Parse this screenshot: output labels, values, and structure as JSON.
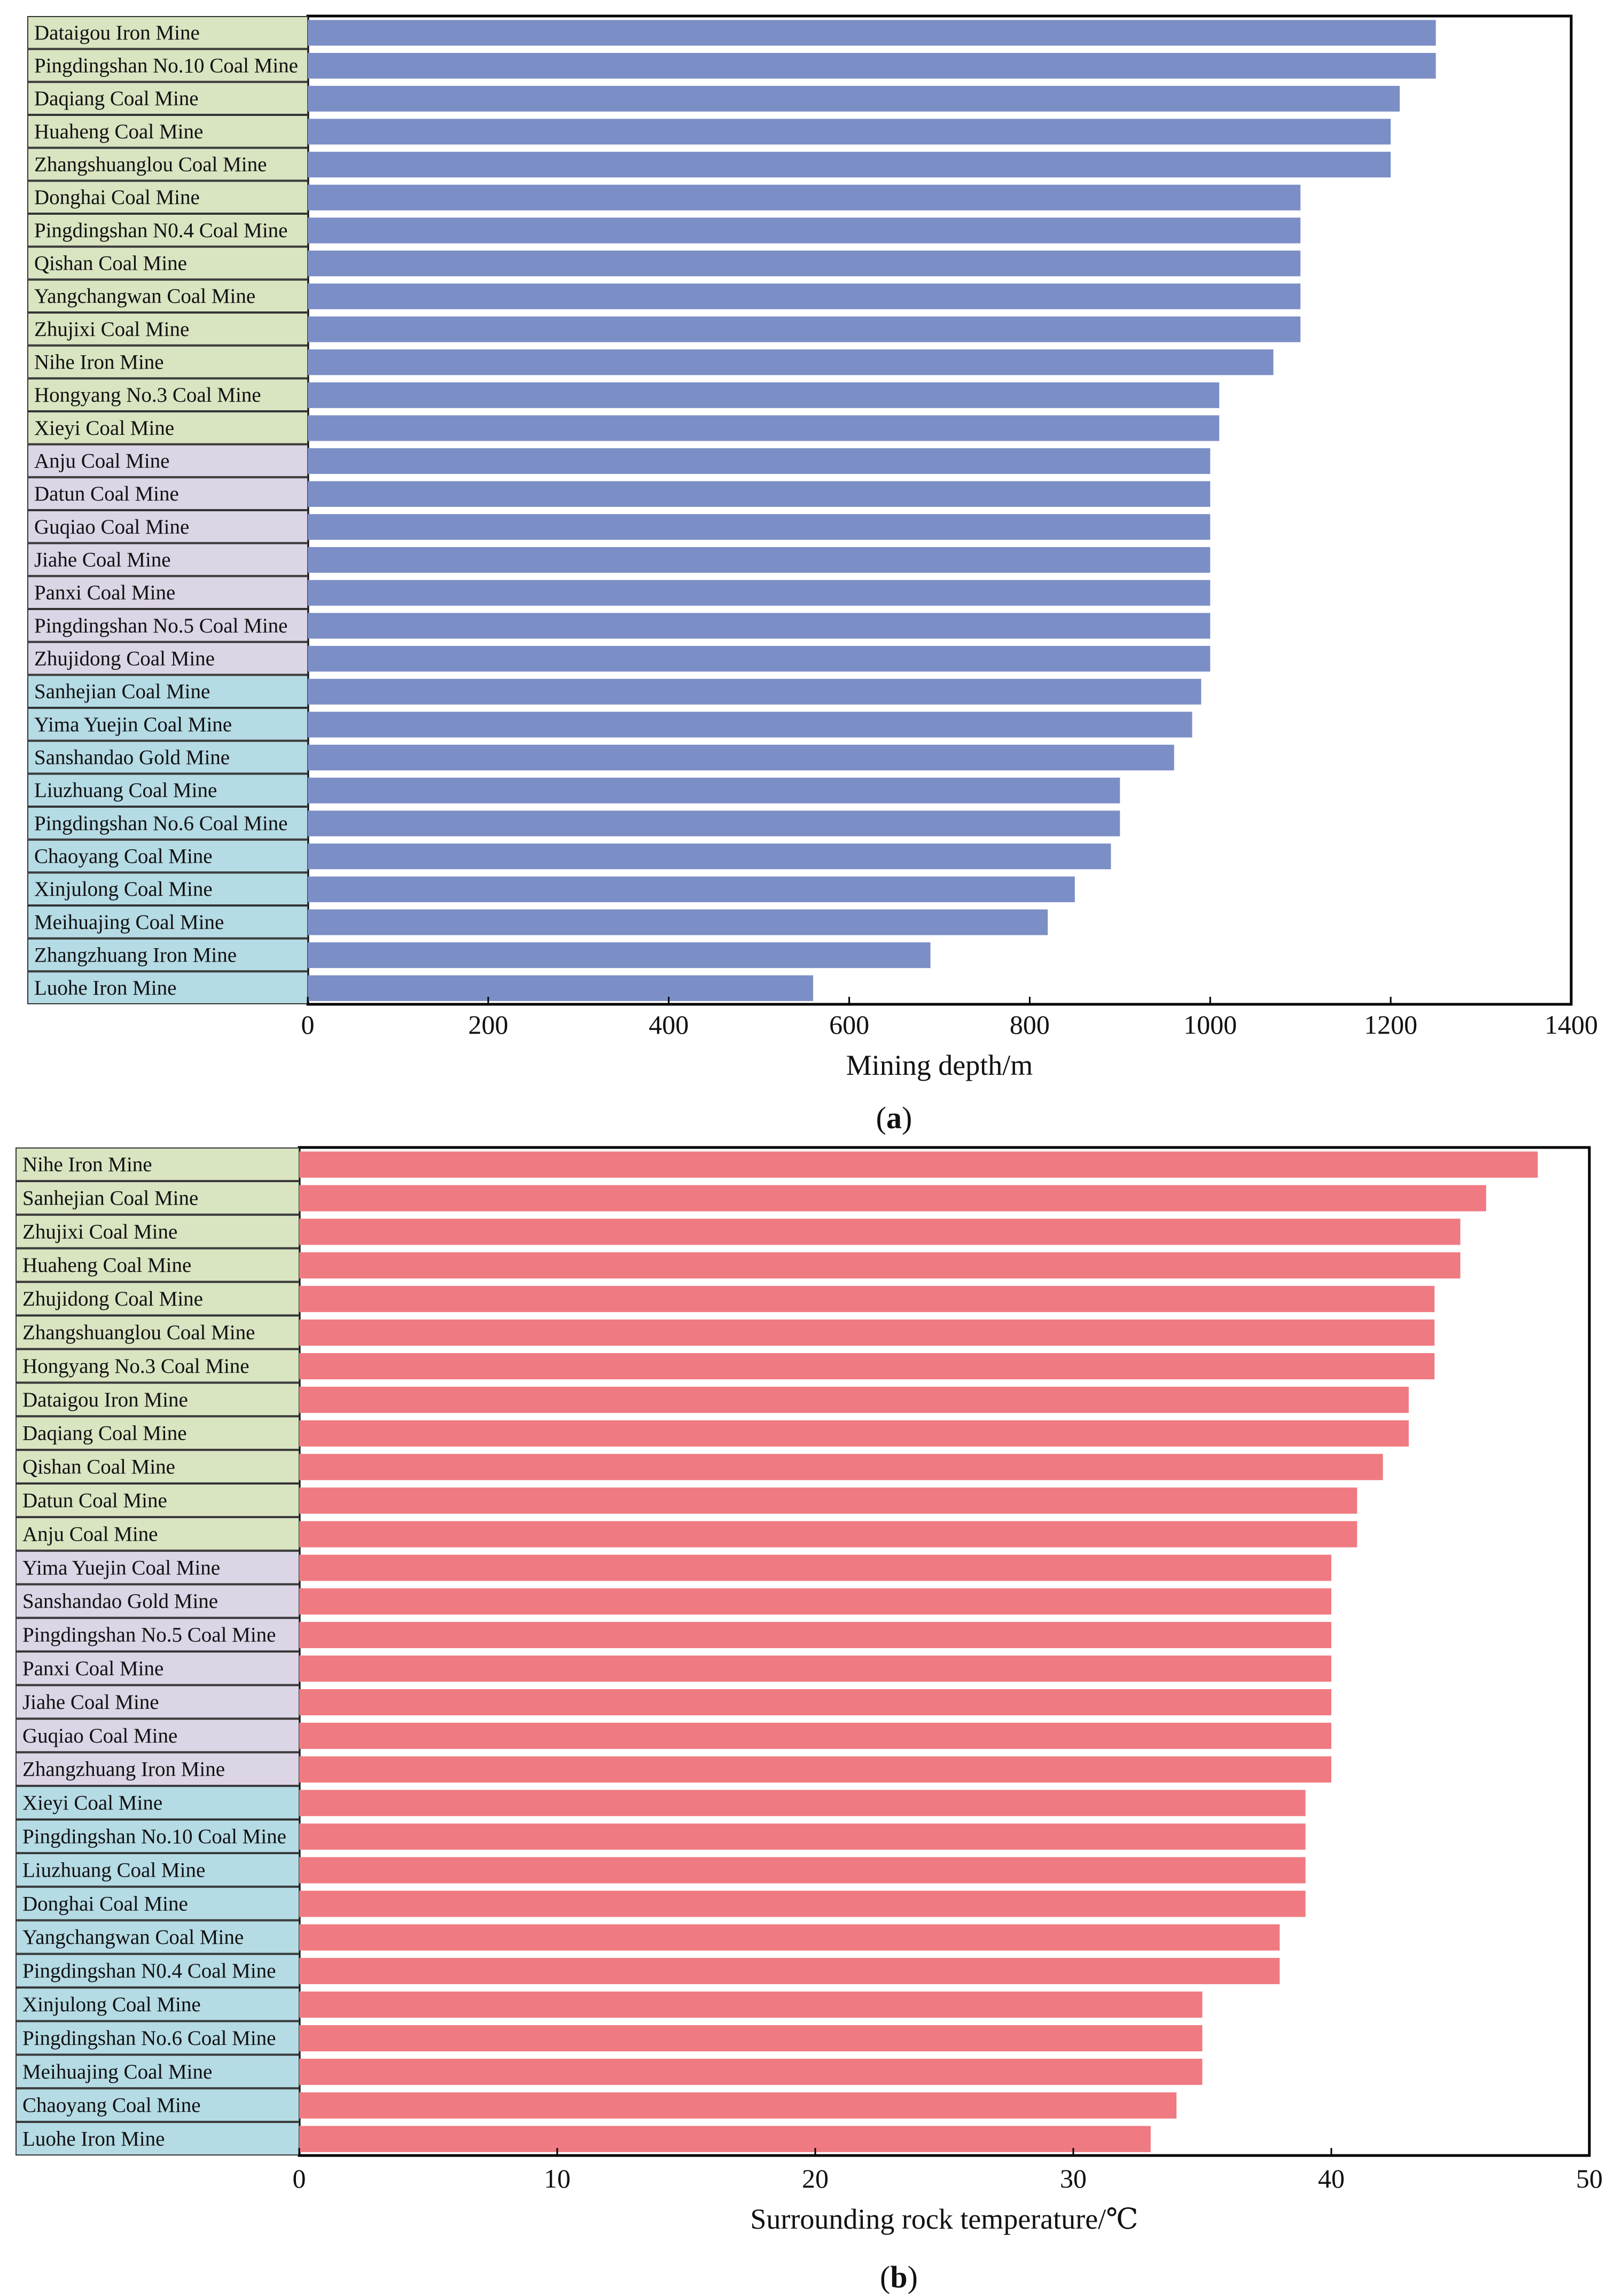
{
  "chart_data": [
    {
      "type": "bar",
      "orientation": "horizontal",
      "panel_label": "(a)",
      "panel_letter": "a",
      "xlabel": "Mining depth/m",
      "xlim": [
        0,
        1400
      ],
      "xticks": [
        0,
        200,
        400,
        600,
        800,
        1000,
        1200,
        1400
      ],
      "bar_color": "#7b8ec6",
      "group_colors": [
        "#d9e4c1",
        "#dcd5e6",
        "#b5dbe5"
      ],
      "categories": [
        "Dataigou Iron Mine",
        "Pingdingshan No.10 Coal Mine",
        "Daqiang Coal Mine",
        "Huaheng Coal Mine",
        "Zhangshuanglou Coal Mine",
        "Donghai Coal Mine",
        "Pingdingshan N0.4 Coal Mine",
        "Qishan Coal Mine",
        "Yangchangwan Coal Mine",
        "Zhujixi Coal Mine",
        "Nihe Iron Mine",
        "Hongyang No.3 Coal Mine",
        "Xieyi Coal Mine",
        "Anju Coal Mine",
        "Datun Coal Mine",
        "Guqiao Coal Mine",
        "Jiahe Coal Mine",
        "Panxi Coal Mine",
        "Pingdingshan No.5 Coal Mine",
        "Zhujidong Coal Mine",
        "Sanhejian Coal Mine",
        "Yima Yuejin Coal Mine",
        "Sanshandao Gold Mine",
        "Liuzhuang Coal Mine",
        "Pingdingshan No.6 Coal Mine",
        "Chaoyang Coal Mine",
        "Xinjulong Coal Mine",
        "Meihuajing Coal Mine",
        "Zhangzhuang Iron Mine",
        "Luohe Iron Mine"
      ],
      "values": [
        1250,
        1250,
        1210,
        1200,
        1200,
        1100,
        1100,
        1100,
        1100,
        1100,
        1070,
        1010,
        1010,
        1000,
        1000,
        1000,
        1000,
        1000,
        1000,
        1000,
        990,
        980,
        960,
        900,
        900,
        890,
        850,
        820,
        690,
        560
      ],
      "groups": [
        0,
        0,
        0,
        0,
        0,
        0,
        0,
        0,
        0,
        0,
        0,
        0,
        0,
        1,
        1,
        1,
        1,
        1,
        1,
        1,
        2,
        2,
        2,
        2,
        2,
        2,
        2,
        2,
        2,
        2
      ]
    },
    {
      "type": "bar",
      "orientation": "horizontal",
      "panel_label": "(b)",
      "panel_letter": "b",
      "xlabel": "Surrounding rock temperature/℃",
      "xlim": [
        0,
        50
      ],
      "xticks": [
        0,
        10,
        20,
        30,
        40,
        50
      ],
      "bar_color": "#ef7a81",
      "group_colors": [
        "#d9e4c1",
        "#dcd5e6",
        "#b5dbe5"
      ],
      "categories": [
        "Nihe Iron Mine",
        "Sanhejian Coal Mine",
        "Zhujixi Coal Mine",
        "Huaheng Coal Mine",
        "Zhujidong Coal Mine",
        "Zhangshuanglou Coal Mine",
        "Hongyang No.3 Coal Mine",
        "Dataigou Iron Mine",
        "Daqiang Coal Mine",
        "Qishan Coal Mine",
        "Datun Coal Mine",
        "Anju Coal Mine",
        "Yima Yuejin Coal Mine",
        "Sanshandao Gold Mine",
        "Pingdingshan No.5 Coal Mine",
        "Panxi Coal Mine",
        "Jiahe Coal Mine",
        "Guqiao Coal Mine",
        "Zhangzhuang Iron Mine",
        "Xieyi Coal Mine",
        "Pingdingshan No.10 Coal Mine",
        "Liuzhuang Coal Mine",
        "Donghai Coal Mine",
        "Yangchangwan Coal Mine",
        "Pingdingshan N0.4 Coal Mine",
        "Xinjulong Coal Mine",
        "Pingdingshan No.6 Coal Mine",
        "Meihuajing Coal Mine",
        "Chaoyang Coal Mine",
        "Luohe Iron Mine"
      ],
      "values": [
        48,
        46,
        45,
        45,
        44,
        44,
        44,
        43,
        43,
        42,
        41,
        41,
        40,
        40,
        40,
        40,
        40,
        40,
        40,
        39,
        39,
        39,
        39,
        38,
        38,
        35,
        35,
        35,
        34,
        33
      ],
      "groups": [
        0,
        0,
        0,
        0,
        0,
        0,
        0,
        0,
        0,
        0,
        0,
        0,
        1,
        1,
        1,
        1,
        1,
        1,
        1,
        2,
        2,
        2,
        2,
        2,
        2,
        2,
        2,
        2,
        2,
        2
      ]
    }
  ]
}
